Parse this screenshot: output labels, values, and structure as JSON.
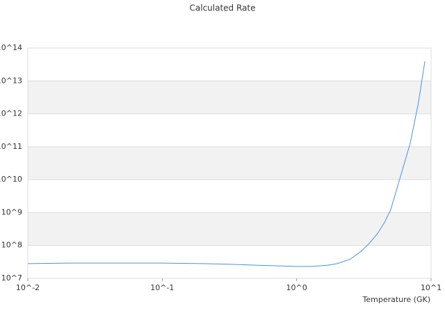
{
  "chart_data": {
    "type": "line",
    "title": "Calculated Rate",
    "x_label": "Temperature (GK)",
    "x": [
      0.01,
      0.02,
      0.05,
      0.1,
      0.2,
      0.3,
      0.5,
      0.7,
      1.0,
      1.3,
      1.7,
      2.0,
      2.5,
      3.0,
      3.5,
      4.0,
      4.5,
      5.0,
      6.0,
      7.0,
      8.0,
      9.0
    ],
    "values": [
      28000000.0,
      29000000.0,
      29000000.0,
      29000000.0,
      28000000.0,
      27000000.0,
      25000000.0,
      24000000.0,
      23000000.0,
      23000000.0,
      25000000.0,
      28000000.0,
      38000000.0,
      65000000.0,
      120000000.0,
      230000000.0,
      500000000.0,
      1200000000.0,
      15000000000.0,
      130000000000.0,
      1900000000000.0,
      40000000000000.0
    ],
    "color": "#4a90e2",
    "log_x": true,
    "log_y": true,
    "banded_grid": true,
    "xlim": [
      0.01,
      10
    ],
    "ylim": [
      10000000.0,
      100000000000000.0
    ],
    "xticks": [
      {
        "value": 0.01,
        "label": "10^-2"
      },
      {
        "value": 0.1,
        "label": "10^-1"
      },
      {
        "value": 1,
        "label": "10^0"
      },
      {
        "value": 10,
        "label": "10^1"
      }
    ],
    "yticks": [
      {
        "value": 10000000.0,
        "label": "10^7"
      },
      {
        "value": 100000000.0,
        "label": "10^8"
      },
      {
        "value": 1000000000.0,
        "label": "10^9"
      },
      {
        "value": 10000000000.0,
        "label": "10^10"
      },
      {
        "value": 100000000000.0,
        "label": "10^11"
      },
      {
        "value": 1000000000000.0,
        "label": "10^12"
      },
      {
        "value": 10000000000000.0,
        "label": "10^13"
      },
      {
        "value": 100000000000000.0,
        "label": "10^14"
      }
    ]
  }
}
